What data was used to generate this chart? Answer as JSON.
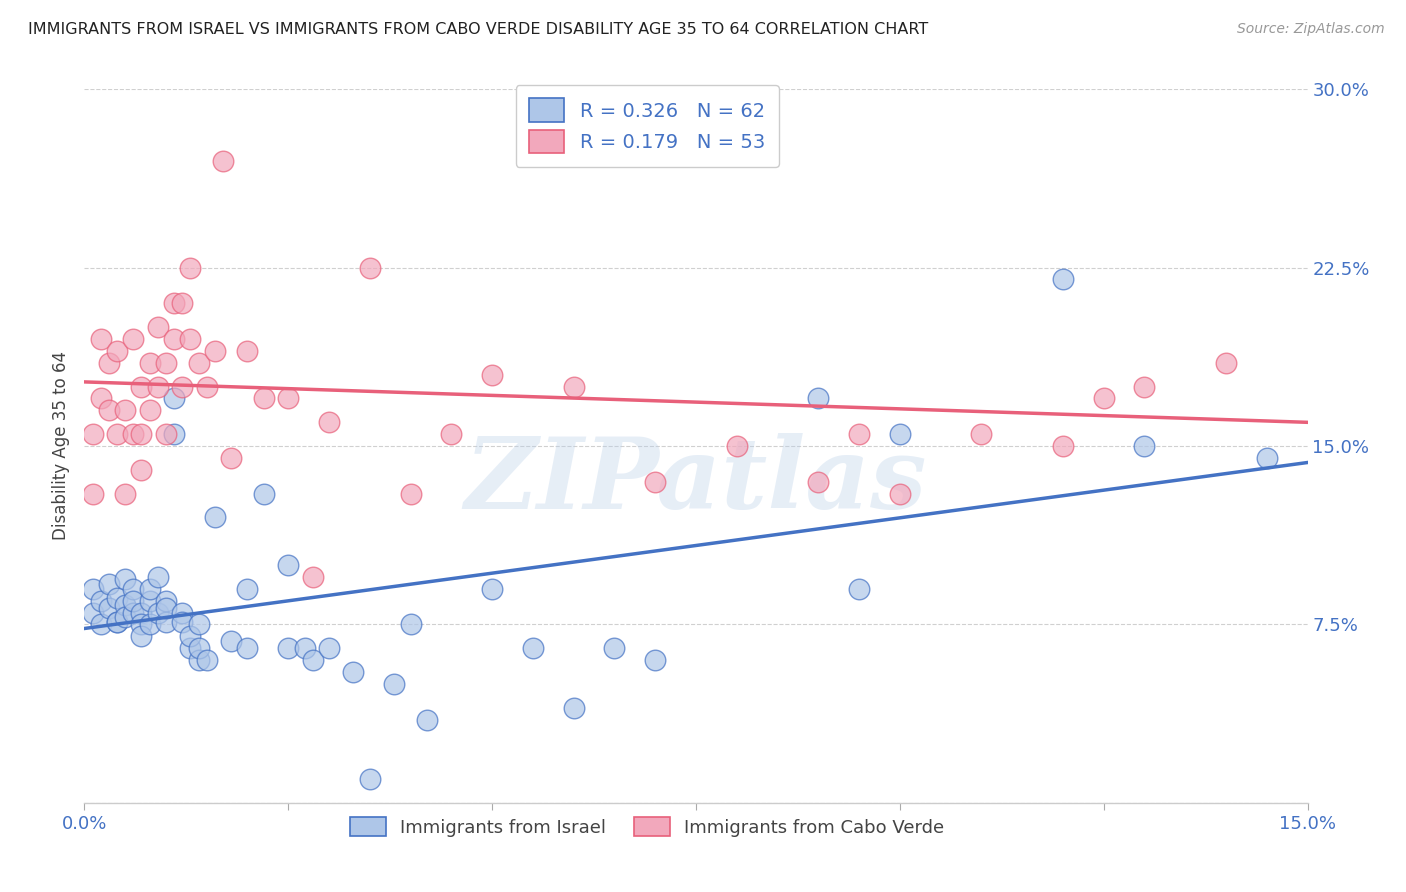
{
  "title": "IMMIGRANTS FROM ISRAEL VS IMMIGRANTS FROM CABO VERDE DISABILITY AGE 35 TO 64 CORRELATION CHART",
  "source": "Source: ZipAtlas.com",
  "ylabel_label": "Disability Age 35 to 64",
  "x_min": 0.0,
  "x_max": 0.15,
  "y_min": 0.0,
  "y_max": 0.3,
  "israel_color": "#aec6e8",
  "cabo_verde_color": "#f2a8bc",
  "israel_line_color": "#4472c4",
  "cabo_verde_line_color": "#e8607a",
  "legend_israel_label": "Immigrants from Israel",
  "legend_cabo_verde_label": "Immigrants from Cabo Verde",
  "legend_r_israel": "0.326",
  "legend_n_israel": "62",
  "legend_r_cabo": "0.179",
  "legend_n_cabo": "53",
  "israel_x": [
    0.001,
    0.001,
    0.002,
    0.002,
    0.003,
    0.003,
    0.004,
    0.004,
    0.004,
    0.005,
    0.005,
    0.005,
    0.006,
    0.006,
    0.006,
    0.007,
    0.007,
    0.007,
    0.008,
    0.008,
    0.008,
    0.009,
    0.009,
    0.01,
    0.01,
    0.01,
    0.011,
    0.011,
    0.012,
    0.012,
    0.013,
    0.013,
    0.014,
    0.014,
    0.014,
    0.015,
    0.016,
    0.018,
    0.02,
    0.02,
    0.022,
    0.025,
    0.025,
    0.027,
    0.028,
    0.03,
    0.033,
    0.035,
    0.038,
    0.04,
    0.042,
    0.05,
    0.055,
    0.06,
    0.065,
    0.07,
    0.09,
    0.095,
    0.1,
    0.12,
    0.13,
    0.145
  ],
  "israel_y": [
    0.08,
    0.09,
    0.085,
    0.075,
    0.082,
    0.092,
    0.076,
    0.086,
    0.076,
    0.083,
    0.078,
    0.094,
    0.09,
    0.08,
    0.085,
    0.08,
    0.075,
    0.07,
    0.075,
    0.085,
    0.09,
    0.095,
    0.08,
    0.076,
    0.085,
    0.082,
    0.17,
    0.155,
    0.08,
    0.076,
    0.065,
    0.07,
    0.06,
    0.065,
    0.075,
    0.06,
    0.12,
    0.068,
    0.09,
    0.065,
    0.13,
    0.065,
    0.1,
    0.065,
    0.06,
    0.065,
    0.055,
    0.01,
    0.05,
    0.075,
    0.035,
    0.09,
    0.065,
    0.04,
    0.065,
    0.06,
    0.17,
    0.09,
    0.155,
    0.22,
    0.15,
    0.145
  ],
  "cabo_x": [
    0.001,
    0.001,
    0.002,
    0.002,
    0.003,
    0.003,
    0.004,
    0.004,
    0.005,
    0.005,
    0.006,
    0.006,
    0.007,
    0.007,
    0.007,
    0.008,
    0.008,
    0.009,
    0.009,
    0.01,
    0.01,
    0.011,
    0.011,
    0.012,
    0.012,
    0.013,
    0.013,
    0.014,
    0.015,
    0.016,
    0.017,
    0.018,
    0.02,
    0.022,
    0.025,
    0.028,
    0.03,
    0.035,
    0.04,
    0.045,
    0.05,
    0.06,
    0.065,
    0.07,
    0.08,
    0.09,
    0.095,
    0.1,
    0.11,
    0.12,
    0.125,
    0.13,
    0.14
  ],
  "cabo_y": [
    0.13,
    0.155,
    0.17,
    0.195,
    0.165,
    0.185,
    0.155,
    0.19,
    0.13,
    0.165,
    0.155,
    0.195,
    0.14,
    0.155,
    0.175,
    0.165,
    0.185,
    0.175,
    0.2,
    0.155,
    0.185,
    0.195,
    0.21,
    0.175,
    0.21,
    0.225,
    0.195,
    0.185,
    0.175,
    0.19,
    0.27,
    0.145,
    0.19,
    0.17,
    0.17,
    0.095,
    0.16,
    0.225,
    0.13,
    0.155,
    0.18,
    0.175,
    0.29,
    0.135,
    0.15,
    0.135,
    0.155,
    0.13,
    0.155,
    0.15,
    0.17,
    0.175,
    0.185
  ],
  "watermark": "ZIPatlas",
  "background_color": "#ffffff",
  "grid_color": "#d0d0d0"
}
